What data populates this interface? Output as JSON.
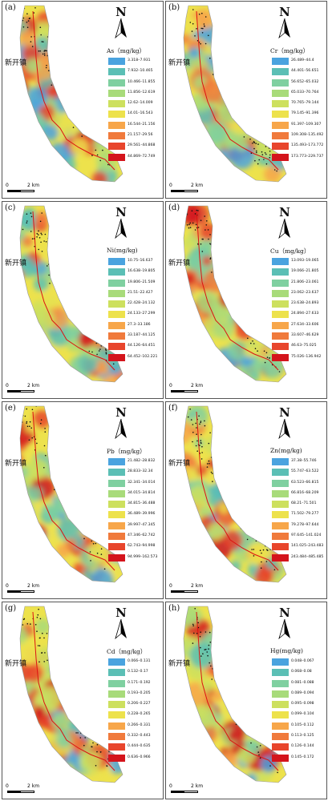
{
  "town_label": "新开镇",
  "north_label": "N",
  "scale": {
    "zero": "0",
    "distance": "2 km"
  },
  "panels": [
    {
      "label": "(a)",
      "title": "As（mg/kg）",
      "ranges": [
        "3.318–7.931",
        "7.932–10.465",
        "10.466–11.855",
        "11.856–12.619",
        "12.62–14.009",
        "14.01–16.543",
        "16.544–21.156",
        "21.157–29.56",
        "29.561–44.868",
        "44.869–72.749"
      ]
    },
    {
      "label": "(b)",
      "title": "Cr（mg/kg）",
      "ranges": [
        "26.489–44.4",
        "44.401–56.651",
        "56.652–65.032",
        "65.033–70.764",
        "70.765–79.144",
        "79.145–91.396",
        "91.397–109.307",
        "109.308–135.492",
        "135.493–173.772",
        "173.773–229.737"
      ]
    },
    {
      "label": "(c)",
      "title": "Ni(mg/kg)",
      "ranges": [
        "10.75–16.637",
        "16.638–19.805",
        "19.806–21.509",
        "21.51–22.427",
        "22.428–24.132",
        "24.133–27.299",
        "27.3–33.186",
        "33.187–44.125",
        "44.126–64.451",
        "64.452–102.221"
      ]
    },
    {
      "label": "(d)",
      "title": "Cu（mg/kg）",
      "ranges": [
        "13.093–19.065",
        "19.066–21.805",
        "21.806–23.061",
        "23.062–23.637",
        "23.638–24.893",
        "24.894–27.633",
        "27.634–33.606",
        "33.607–46.629",
        "46.63–75.025",
        "75.026–136.942"
      ]
    },
    {
      "label": "(e)",
      "title": "Pb（mg/kg）",
      "ranges": [
        "21.482–28.832",
        "28.833–32.34",
        "32.341–34.014",
        "34.015–34.814",
        "34.815–36.488",
        "36.489–39.996",
        "39.997–47.345",
        "47.346–62.742",
        "62.743–94.998",
        "94.999–162.573"
      ]
    },
    {
      "label": "(f)",
      "title": "Zn(mg/kg)",
      "ranges": [
        "37.38–55.746",
        "55.747–63.522",
        "63.523–66.815",
        "66.816–68.209",
        "68.21–71.501",
        "71.502–79.277",
        "79.278–97.644",
        "97.645–141.024",
        "141.025–243.483",
        "243.484–485.485"
      ]
    },
    {
      "label": "(g)",
      "title": "Cd（mg/kg）",
      "ranges": [
        "0.066–0.131",
        "0.132–0.17",
        "0.171–0.192",
        "0.193–0.205",
        "0.206–0.227",
        "0.228–0.265",
        "0.266–0.331",
        "0.332–0.443",
        "0.444–0.635",
        "0.636–0.966"
      ]
    },
    {
      "label": "(h)",
      "title": "Hg(mg/kg)",
      "ranges": [
        "0.048–0.067",
        "0.068–0.08",
        "0.081–0.088",
        "0.089–0.094",
        "0.095–0.098",
        "0.099–0.104",
        "0.105–0.112",
        "0.113–0.125",
        "0.126–0.144",
        "0.145–0.172"
      ]
    }
  ],
  "legend_colors": [
    "#4aa3df",
    "#5bbfb5",
    "#7fd0a0",
    "#a8db7a",
    "#cde05e",
    "#ede24c",
    "#f7a64a",
    "#f07a3c",
    "#e8452c",
    "#d4141c"
  ]
}
